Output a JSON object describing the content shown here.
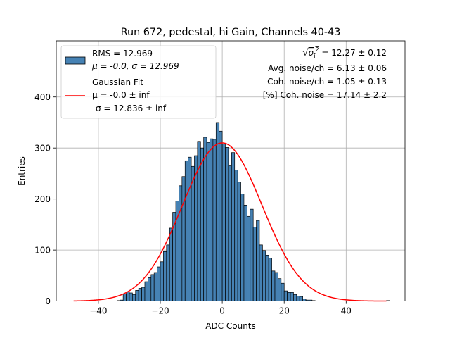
{
  "chart_data": {
    "type": "bar",
    "title": "Run 672, pedestal, hi Gain, Channels 40-43",
    "xlabel": "ADC Counts",
    "ylabel": "Entries",
    "xlim": [
      -53.6,
      59
    ],
    "ylim": [
      0,
      510
    ],
    "xticks": [
      -40,
      -20,
      0,
      20,
      40
    ],
    "yticks": [
      0,
      100,
      200,
      300,
      400
    ],
    "grid": true,
    "bin_width": 1,
    "bin_start": -48,
    "histogram_counts": [
      0,
      0,
      0,
      0,
      0,
      0,
      0,
      0,
      0,
      0,
      0,
      0,
      0,
      0,
      1,
      2,
      14,
      18,
      16,
      13,
      21,
      25,
      27,
      38,
      46,
      52,
      56,
      67,
      77,
      97,
      110,
      143,
      174,
      196,
      226,
      244,
      275,
      282,
      264,
      285,
      313,
      300,
      321,
      311,
      318,
      317,
      350,
      333,
      308,
      301,
      265,
      291,
      257,
      233,
      210,
      188,
      166,
      180,
      145,
      158,
      110,
      99,
      90,
      84,
      59,
      56,
      44,
      35,
      20,
      17,
      17,
      13,
      10,
      9,
      4,
      2,
      2,
      1,
      0,
      0,
      0,
      0,
      0,
      0,
      0,
      0,
      0,
      0,
      0,
      0,
      0,
      0,
      0,
      0,
      0,
      0,
      0,
      0,
      0,
      0,
      0,
      1
    ],
    "fit": {
      "mu": 0.0,
      "sigma": 12.836,
      "amplitude": 310,
      "x_range": [
        -48,
        53
      ]
    },
    "legend": {
      "placement": "top-left",
      "hist_line1": "RMS = 12.969",
      "hist_line2": "μ = -0.0, σ = 12.969",
      "fit_line1": "Gaussian Fit",
      "fit_line2": " μ = -0.0 ± inf",
      "fit_line3": "σ = 12.836 ± inf"
    },
    "annotations": {
      "line1_value": " = 12.27 ± 0.12",
      "line2": "Avg. noise/ch = 6.13 ± 0.06",
      "line3": "Coh. noise/ch = 1.05 ± 0.13",
      "line4": "[%] Coh. noise = 17.14 ± 2.2"
    },
    "colors": {
      "bar_fill": "#4682b4",
      "bar_edge": "#000000",
      "fit": "#ff0000",
      "grid": "#b0b0b0"
    }
  }
}
